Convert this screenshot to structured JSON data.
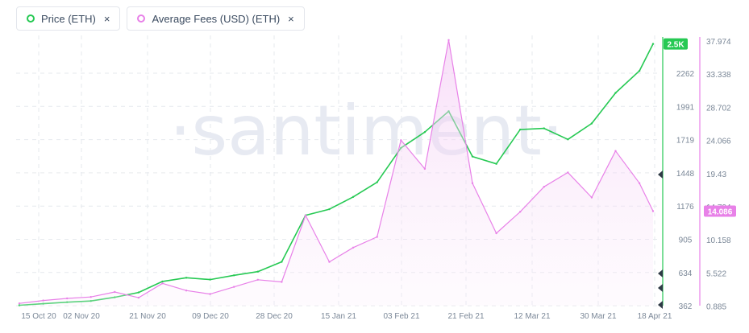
{
  "legend": {
    "series1": {
      "label": "Price (ETH)",
      "color": "#26c953",
      "close": "×"
    },
    "series2": {
      "label": "Average Fees (USD) (ETH)",
      "color": "#e881e8",
      "close": "×"
    }
  },
  "watermark": "·santiment·",
  "chart_data": {
    "type": "line",
    "x_ticks": [
      "15 Oct 20",
      "02 Nov 20",
      "21 Nov 20",
      "09 Dec 20",
      "28 Dec 20",
      "15 Jan 21",
      "03 Feb 21",
      "21 Feb 21",
      "12 Mar 21",
      "30 Mar 21",
      "18 Apr 21"
    ],
    "x": [
      "2020-10-12",
      "2020-10-19",
      "2020-10-26",
      "2020-11-02",
      "2020-11-09",
      "2020-11-16",
      "2020-11-23",
      "2020-11-30",
      "2020-12-07",
      "2020-12-14",
      "2020-12-21",
      "2020-12-28",
      "2021-01-04",
      "2021-01-11",
      "2021-01-18",
      "2021-01-25",
      "2021-02-01",
      "2021-02-08",
      "2021-02-15",
      "2021-02-22",
      "2021-03-01",
      "2021-03-08",
      "2021-03-15",
      "2021-03-22",
      "2021-03-29",
      "2021-04-05",
      "2021-04-12",
      "2021-04-16"
    ],
    "y_left": {
      "ticks": [
        "2262",
        "1991",
        "1719",
        "1448",
        "1176",
        "905",
        "634",
        "362"
      ],
      "range": [
        362,
        2530
      ]
    },
    "y_right": {
      "ticks": [
        "37.974",
        "33.338",
        "28.702",
        "24.066",
        "19.43",
        "14.794",
        "10.158",
        "5.522",
        "0.885"
      ],
      "range": [
        0.885,
        37.974
      ]
    },
    "series": [
      {
        "name": "Price (ETH)",
        "axis": "left",
        "color": "#26c953",
        "current_label": "2.5K",
        "values": [
          365,
          378,
          390,
          400,
          430,
          470,
          560,
          590,
          575,
          610,
          640,
          720,
          1100,
          1150,
          1250,
          1370,
          1650,
          1780,
          1950,
          1580,
          1520,
          1800,
          1810,
          1720,
          1850,
          2100,
          2280,
          2500
        ]
      },
      {
        "name": "Average Fees (USD) (ETH)",
        "axis": "right",
        "color": "#e881e8",
        "current_label": "14.086",
        "filled": true,
        "values": [
          1.2,
          1.6,
          1.9,
          2.1,
          2.8,
          2.0,
          4.0,
          3.0,
          2.5,
          3.5,
          4.5,
          4.2,
          13.5,
          7.0,
          9.0,
          10.5,
          24.0,
          20.0,
          38.0,
          18.0,
          11.0,
          14.0,
          17.5,
          19.5,
          16.0,
          22.5,
          18.0,
          14.086
        ]
      }
    ]
  }
}
